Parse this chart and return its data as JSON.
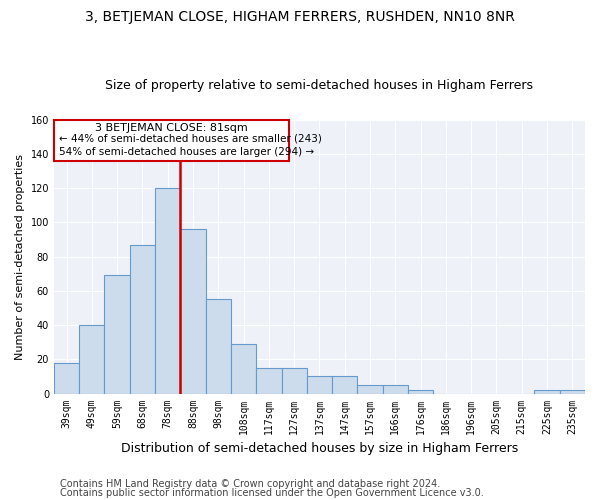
{
  "title": "3, BETJEMAN CLOSE, HIGHAM FERRERS, RUSHDEN, NN10 8NR",
  "subtitle": "Size of property relative to semi-detached houses in Higham Ferrers",
  "xlabel": "Distribution of semi-detached houses by size in Higham Ferrers",
  "ylabel": "Number of semi-detached properties",
  "categories": [
    "39sqm",
    "49sqm",
    "59sqm",
    "68sqm",
    "78sqm",
    "88sqm",
    "98sqm",
    "108sqm",
    "117sqm",
    "127sqm",
    "137sqm",
    "147sqm",
    "157sqm",
    "166sqm",
    "176sqm",
    "186sqm",
    "196sqm",
    "205sqm",
    "215sqm",
    "225sqm",
    "235sqm"
  ],
  "bar_heights": [
    18,
    40,
    69,
    87,
    120,
    96,
    55,
    29,
    15,
    15,
    10,
    10,
    5,
    5,
    2,
    0,
    0,
    0,
    0,
    2,
    2
  ],
  "bar_color": "#ccdcec",
  "bar_edge_color": "#6699cc",
  "vline_color": "#cc0000",
  "vline_x": 4.5,
  "annotation_title": "3 BETJEMAN CLOSE: 81sqm",
  "annotation_line1": "← 44% of semi-detached houses are smaller (243)",
  "annotation_line2": "54% of semi-detached houses are larger (294) →",
  "annotation_box_edge_color": "#cc0000",
  "ylim": [
    0,
    160
  ],
  "yticks": [
    0,
    20,
    40,
    60,
    80,
    100,
    120,
    140,
    160
  ],
  "footnote1": "Contains HM Land Registry data © Crown copyright and database right 2024.",
  "footnote2": "Contains public sector information licensed under the Open Government Licence v3.0.",
  "plot_bg_color": "#eef2f8",
  "grid_color": "#ffffff",
  "title_fontsize": 10,
  "subtitle_fontsize": 9,
  "xlabel_fontsize": 9,
  "ylabel_fontsize": 8,
  "tick_fontsize": 7,
  "annotation_fontsize": 8,
  "footnote_fontsize": 7
}
